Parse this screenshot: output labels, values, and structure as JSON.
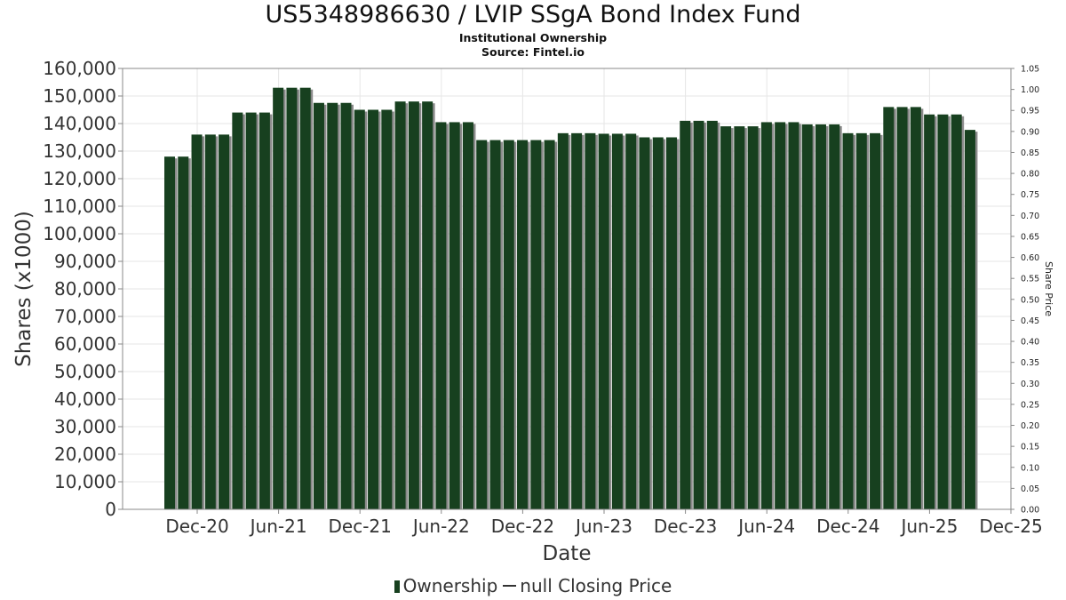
{
  "title": "US5348986630 / LVIP SSgA Bond Index Fund",
  "subtitle": "Institutional Ownership",
  "source": "Source: Fintel.io",
  "legend": {
    "ownership_label": "Ownership",
    "price_label": "null Closing Price"
  },
  "colors": {
    "bar": "#17401f",
    "bar_shadow": "#8a8a8a",
    "grid": "#e6e6e6",
    "axis": "#888888"
  },
  "chart_data": {
    "type": "bar",
    "title": "US5348986630 / LVIP SSgA Bond Index Fund",
    "subtitle": "Institutional Ownership",
    "xlabel": "Date",
    "ylabel": "Shares (x1000)",
    "y2label": "Share Price",
    "ylim": [
      0,
      160000
    ],
    "y2lim": [
      0,
      1.05
    ],
    "grid": true,
    "legend_position": "bottom",
    "x_ticks": [
      "Dec-20",
      "Jun-21",
      "Dec-21",
      "Jun-22",
      "Dec-22",
      "Jun-23",
      "Dec-23",
      "Jun-24",
      "Dec-24",
      "Jun-25",
      "Dec-25"
    ],
    "y_ticks": [
      "0",
      "10,000",
      "20,000",
      "30,000",
      "40,000",
      "50,000",
      "60,000",
      "70,000",
      "80,000",
      "90,000",
      "100,000",
      "110,000",
      "120,000",
      "130,000",
      "140,000",
      "150,000",
      "160,000"
    ],
    "y2_ticks": [
      "0.00",
      "0.05",
      "0.10",
      "0.15",
      "0.20",
      "0.25",
      "0.30",
      "0.35",
      "0.40",
      "0.45",
      "0.50",
      "0.55",
      "0.60",
      "0.65",
      "0.70",
      "0.75",
      "0.80",
      "0.85",
      "0.90",
      "0.95",
      "1.00",
      "1.05"
    ],
    "series": [
      {
        "name": "Ownership",
        "values": [
          128000,
          128000,
          136000,
          136000,
          136000,
          144000,
          144000,
          144000,
          153000,
          153000,
          153000,
          147500,
          147500,
          147500,
          145000,
          145000,
          145000,
          148000,
          148000,
          148000,
          140500,
          140500,
          140500,
          134000,
          134000,
          134000,
          134000,
          134000,
          134000,
          136500,
          136500,
          136500,
          136300,
          136300,
          136300,
          135000,
          135000,
          135000,
          141000,
          141000,
          141000,
          139000,
          139000,
          139000,
          140500,
          140500,
          140500,
          139700,
          139700,
          139700,
          136500,
          136500,
          136500,
          146000,
          146000,
          146000,
          143300,
          143300,
          143300,
          137700
        ]
      },
      {
        "name": "null Closing Price",
        "values": []
      }
    ]
  }
}
